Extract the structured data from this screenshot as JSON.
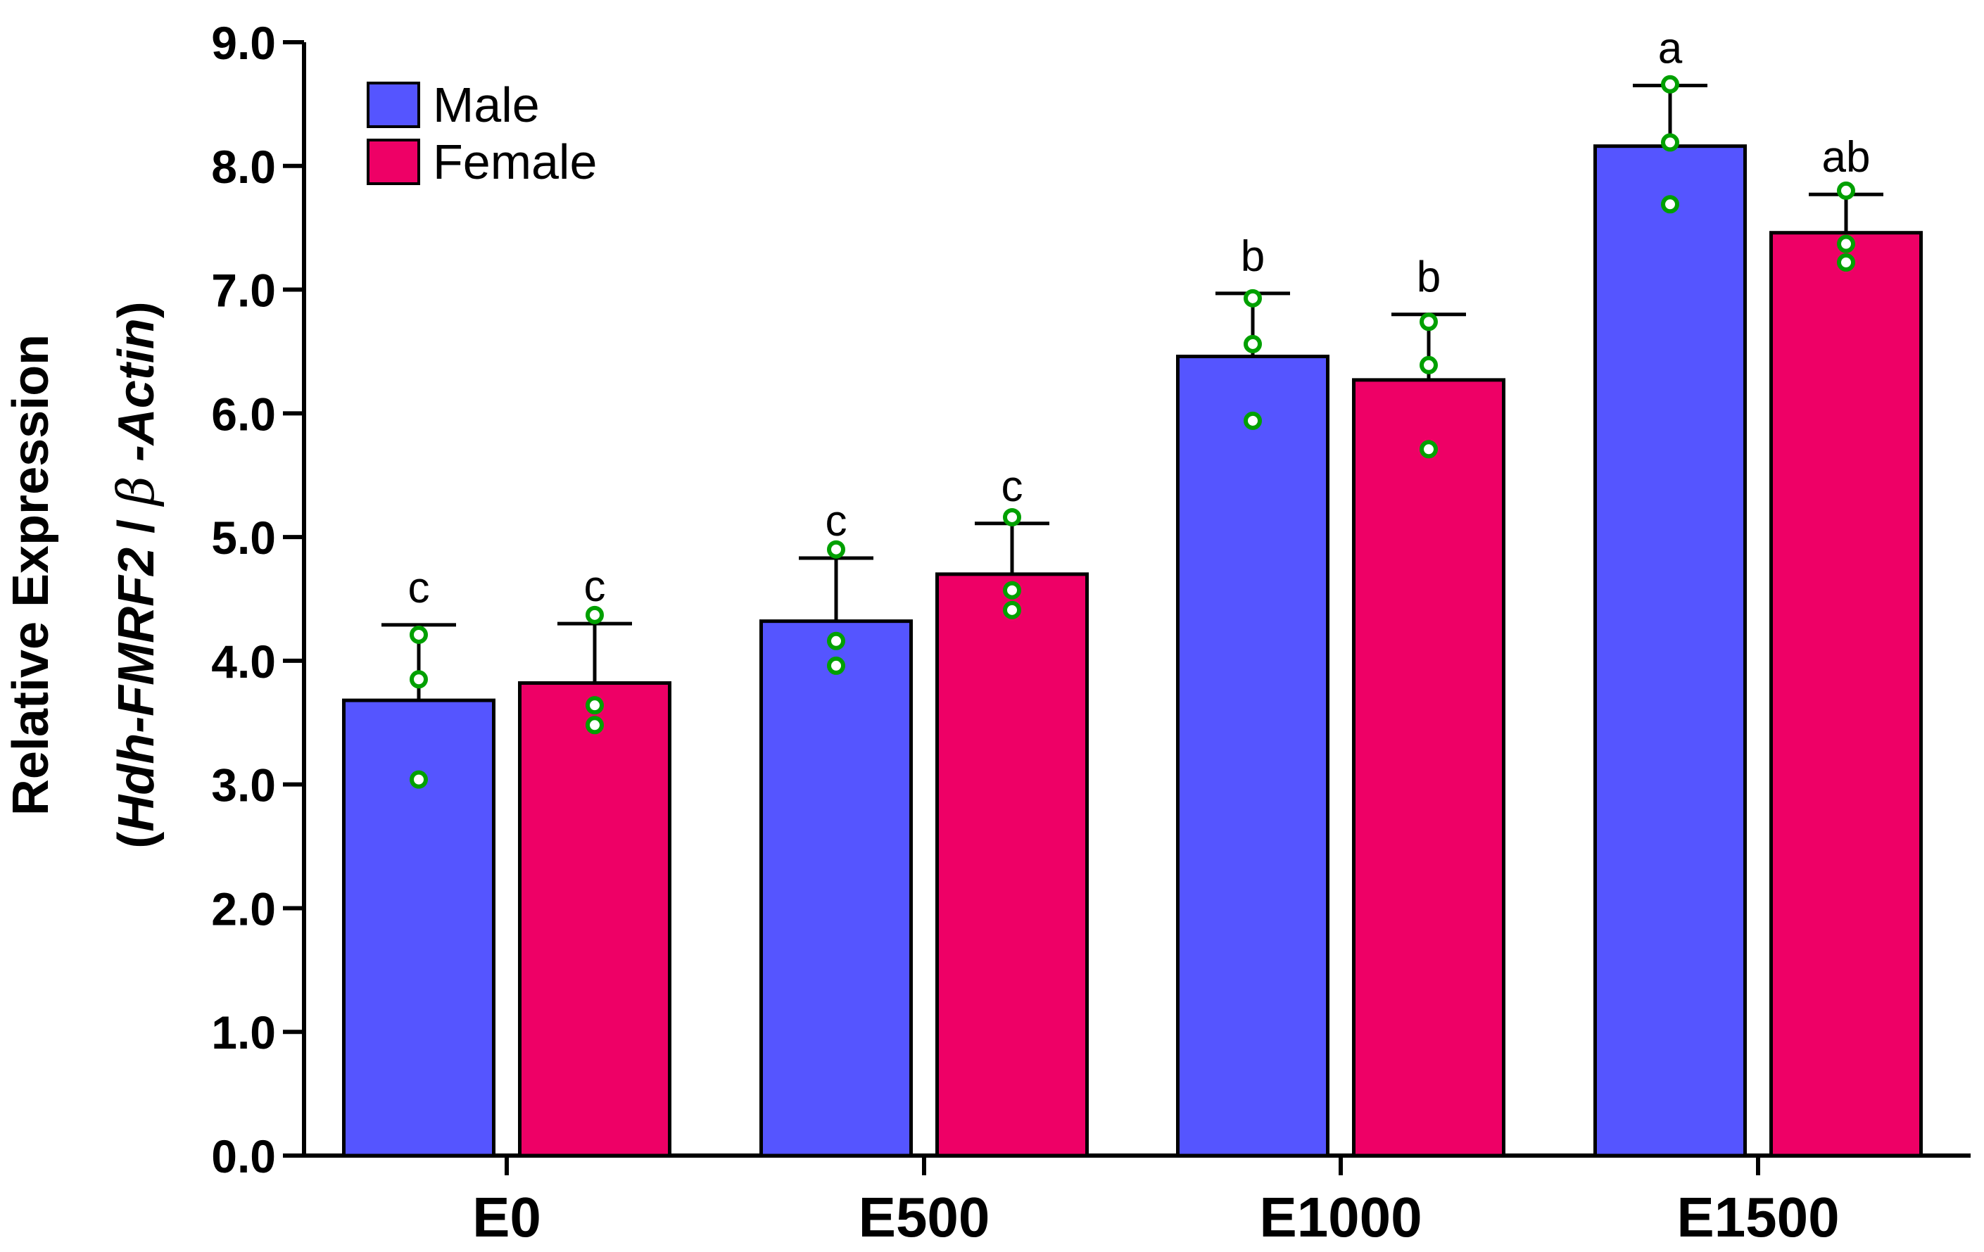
{
  "chart_data": {
    "type": "bar",
    "title": "",
    "xlabel": "",
    "ylabel": {
      "line1": "Relative Expression",
      "line2_open": "(",
      "line2_italic_a": "Hdh-FMRF2",
      "line2_sep": " / ",
      "line2_beta": "β",
      "line2_italic_b": " -Actin",
      "line2_close": ")"
    },
    "ylim": [
      0,
      9
    ],
    "yticks": [
      "0.0",
      "1.0",
      "2.0",
      "3.0",
      "4.0",
      "5.0",
      "6.0",
      "7.0",
      "8.0",
      "9.0"
    ],
    "categories": [
      "E0",
      "E500",
      "E1000",
      "E1500"
    ],
    "legend_position": "top-left",
    "series": [
      {
        "name": "Male",
        "color": "#5555ff",
        "values": [
          3.68,
          4.32,
          6.46,
          8.16
        ],
        "errors": [
          0.61,
          0.51,
          0.51,
          0.49
        ],
        "points": [
          [
            3.04,
            3.85,
            4.21
          ],
          [
            3.96,
            4.16,
            4.9
          ],
          [
            5.94,
            6.56,
            6.93
          ],
          [
            7.69,
            8.19,
            8.66
          ]
        ],
        "sig": [
          "c",
          "c",
          "b",
          "a"
        ]
      },
      {
        "name": "Female",
        "color": "#ee0066",
        "values": [
          3.82,
          4.7,
          6.27,
          7.46
        ],
        "errors": [
          0.48,
          0.41,
          0.53,
          0.31
        ],
        "points": [
          [
            3.48,
            3.64,
            4.37
          ],
          [
            4.41,
            4.57,
            5.16
          ],
          [
            5.71,
            6.39,
            6.74
          ],
          [
            7.22,
            7.37,
            7.8
          ]
        ],
        "sig": [
          "c",
          "c",
          "b",
          "ab"
        ]
      }
    ],
    "point_color": "#00a000"
  }
}
